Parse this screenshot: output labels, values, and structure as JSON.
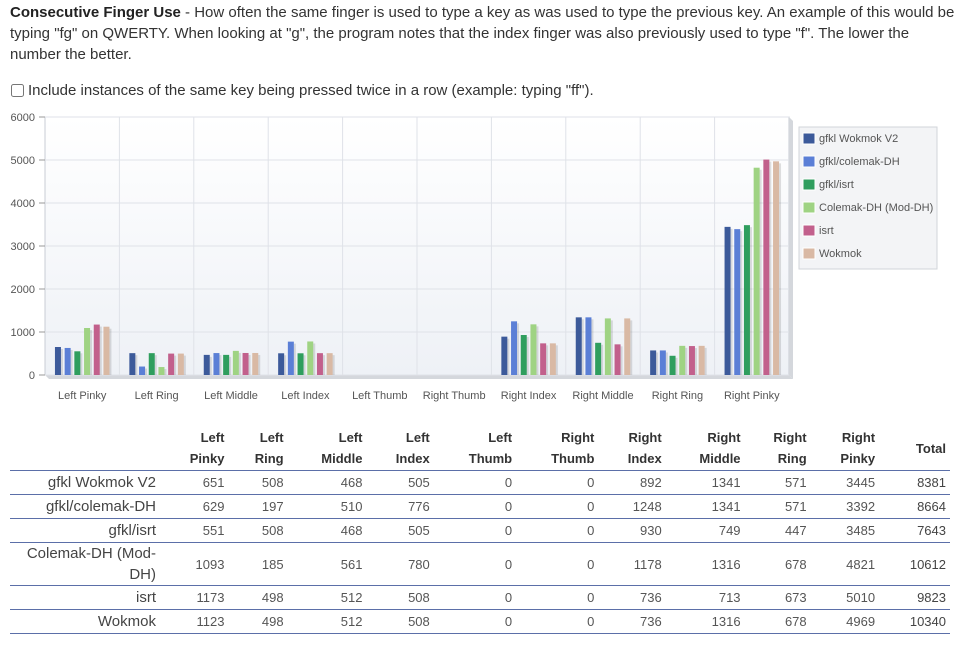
{
  "description": {
    "title": "Consecutive Finger Use",
    "text": " - How often the same finger is used to type a key as was used to type the previous key. An example of this would be typing \"fg\" on QWERTY. When looking at \"g\", the program notes that the index finger was also previously used to type \"f\". The lower the number the better."
  },
  "option": {
    "label": "Include instances of the same key being pressed twice in a row (example: typing \"ff\").",
    "checked": false
  },
  "chart_data": {
    "type": "bar",
    "categories": [
      "Left Pinky",
      "Left Ring",
      "Left Middle",
      "Left Index",
      "Left Thumb",
      "Right Thumb",
      "Right Index",
      "Right Middle",
      "Right Ring",
      "Right Pinky"
    ],
    "series": [
      {
        "name": "gfkl Wokmok V2",
        "color": "#3c5a9a",
        "values": [
          651,
          508,
          468,
          505,
          0,
          0,
          892,
          1341,
          571,
          3445
        ]
      },
      {
        "name": "gfkl/colemak-DH",
        "color": "#5b7fd6",
        "values": [
          629,
          197,
          510,
          776,
          0,
          0,
          1248,
          1341,
          571,
          3392
        ]
      },
      {
        "name": "gfkl/isrt",
        "color": "#2f9e5e",
        "values": [
          551,
          508,
          468,
          505,
          0,
          0,
          930,
          749,
          447,
          3485
        ]
      },
      {
        "name": "Colemak-DH (Mod-DH)",
        "color": "#9fd383",
        "values": [
          1093,
          185,
          561,
          780,
          0,
          0,
          1178,
          1316,
          678,
          4821
        ]
      },
      {
        "name": "isrt",
        "color": "#c2608c",
        "values": [
          1173,
          498,
          512,
          508,
          0,
          0,
          736,
          713,
          673,
          5010
        ]
      },
      {
        "name": "Wokmok",
        "color": "#d9b9a4",
        "values": [
          1123,
          498,
          512,
          508,
          0,
          0,
          736,
          1316,
          678,
          4969
        ]
      }
    ],
    "ylim": [
      0,
      6000
    ],
    "yticks": [
      0,
      1000,
      2000,
      3000,
      4000,
      5000,
      6000
    ],
    "grid": true,
    "legend": "right"
  },
  "table": {
    "headers": [
      {
        "top": "",
        "bottom": ""
      },
      {
        "top": "Left",
        "bottom": "Pinky"
      },
      {
        "top": "Left",
        "bottom": "Ring"
      },
      {
        "top": "Left",
        "bottom": "Middle"
      },
      {
        "top": "Left",
        "bottom": "Index"
      },
      {
        "top": "Left",
        "bottom": "Thumb"
      },
      {
        "top": "Right",
        "bottom": "Thumb"
      },
      {
        "top": "Right",
        "bottom": "Index"
      },
      {
        "top": "Right",
        "bottom": "Middle"
      },
      {
        "top": "Right",
        "bottom": "Ring"
      },
      {
        "top": "Right",
        "bottom": "Pinky"
      },
      {
        "top": "Total",
        "bottom": ""
      }
    ],
    "rows": [
      {
        "name": "gfkl Wokmok V2",
        "values": [
          "651",
          "508",
          "468",
          "505",
          "0",
          "0",
          "892",
          "1341",
          "571",
          "3445"
        ],
        "total": "8381"
      },
      {
        "name": "gfkl/colemak-DH",
        "values": [
          "629",
          "197",
          "510",
          "776",
          "0",
          "0",
          "1248",
          "1341",
          "571",
          "3392"
        ],
        "total": "8664"
      },
      {
        "name": "gfkl/isrt",
        "values": [
          "551",
          "508",
          "468",
          "505",
          "0",
          "0",
          "930",
          "749",
          "447",
          "3485"
        ],
        "total": "7643"
      },
      {
        "name": "Colemak-DH (Mod-DH)",
        "values": [
          "1093",
          "185",
          "561",
          "780",
          "0",
          "0",
          "1178",
          "1316",
          "678",
          "4821"
        ],
        "total": "10612"
      },
      {
        "name": "isrt",
        "values": [
          "1173",
          "498",
          "512",
          "508",
          "0",
          "0",
          "736",
          "713",
          "673",
          "5010"
        ],
        "total": "9823"
      },
      {
        "name": "Wokmok",
        "values": [
          "1123",
          "498",
          "512",
          "508",
          "0",
          "0",
          "736",
          "1316",
          "678",
          "4969"
        ],
        "total": "10340"
      }
    ]
  }
}
